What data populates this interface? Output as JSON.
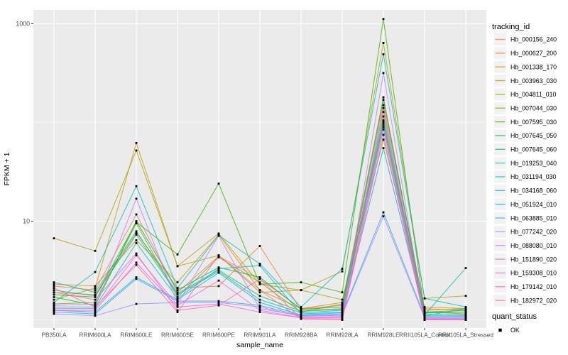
{
  "figure": {
    "xlabel": "sample_name",
    "ylabel": "FPKM + 1",
    "y_tick_labels": [
      "10",
      "1000"
    ],
    "legend_color_title": "tracking_id",
    "legend_shape_title": "quant_status",
    "legend_shape_item": "OK",
    "panel_bg": "#EBEBEB",
    "grid_color": "#FFFFFF",
    "tick_label_color": "#4D4D4D",
    "tick_mark_color": "#333333",
    "point_color": "#000000",
    "legend_key_bg": "#F2F2F2"
  },
  "chart_data": {
    "type": "line",
    "title": "",
    "xlabel": "sample_name",
    "ylabel": "FPKM + 1",
    "y_scale": "log10",
    "y_major_breaks": [
      10,
      1000
    ],
    "y_minor_breaks": [
      1,
      100
    ],
    "ylim": [
      0.85,
      1400
    ],
    "grid": true,
    "legend_position": "right",
    "categories": [
      "PB350LA",
      "RRIM600LA",
      "RRIM600LE",
      "RRIM600SE",
      "RRIM600PE",
      "RRIM901LA",
      "RRIM928BA",
      "RRIM928LA",
      "RRIM928LE",
      "RRII105LA_Control",
      "RRII105LA_Stressed"
    ],
    "series": [
      {
        "name": "Hb_000156_240",
        "color": "#F8766D",
        "values": [
          2.2,
          2.0,
          11.7,
          1.9,
          4.4,
          2.6,
          1.3,
          1.4,
          150,
          1.3,
          1.25
        ]
      },
      {
        "name": "Hb_000627_200",
        "color": "#EA8331",
        "values": [
          1.9,
          1.8,
          7.6,
          2.1,
          2.2,
          5.6,
          1.25,
          1.3,
          128,
          1.2,
          1.2
        ]
      },
      {
        "name": "Hb_001338_170",
        "color": "#D89000",
        "values": [
          2.3,
          2.2,
          6.4,
          2.4,
          7.3,
          2.0,
          1.3,
          1.5,
          100,
          1.25,
          1.3
        ]
      },
      {
        "name": "Hb_003963_030",
        "color": "#C09B00",
        "values": [
          1.6,
          2.1,
          62,
          3.5,
          7.5,
          2.3,
          2.0,
          3.1,
          640,
          1.65,
          1.75
        ]
      },
      {
        "name": "Hb_004811_010",
        "color": "#A3A500",
        "values": [
          6.7,
          5.0,
          52,
          3.5,
          4.5,
          1.9,
          2.0,
          1.6,
          67,
          1.35,
          1.3
        ]
      },
      {
        "name": "Hb_007044_030",
        "color": "#7CAE00",
        "values": [
          1.45,
          1.5,
          9.5,
          1.7,
          4.3,
          2.4,
          1.2,
          1.45,
          180,
          1.2,
          1.15
        ]
      },
      {
        "name": "Hb_007595_030",
        "color": "#39B600",
        "values": [
          1.8,
          1.7,
          9.8,
          4.6,
          24,
          2.3,
          2.4,
          1.9,
          1117,
          1.2,
          1.25
        ]
      },
      {
        "name": "Hb_007645_050",
        "color": "#00BB4E",
        "values": [
          1.7,
          1.4,
          10,
          2.0,
          3.4,
          2.7,
          1.28,
          1.35,
          170,
          1.18,
          1.2
        ]
      },
      {
        "name": "Hb_007645_060",
        "color": "#00C08B",
        "values": [
          2.4,
          1.9,
          7.9,
          1.85,
          3.2,
          1.75,
          1.22,
          1.28,
          115,
          1.15,
          1.12
        ]
      },
      {
        "name": "Hb_019253_040",
        "color": "#00C1A3",
        "values": [
          2.0,
          1.75,
          7.3,
          1.8,
          3.1,
          1.6,
          1.18,
          1.25,
          95,
          1.12,
          3.35
        ]
      },
      {
        "name": "Hb_031194_030",
        "color": "#00BFC4",
        "values": [
          1.5,
          3.05,
          22.6,
          2.1,
          7.2,
          3.7,
          1.35,
          3.3,
          490,
          1.65,
          1.35
        ]
      },
      {
        "name": "Hb_034168_060",
        "color": "#00BAE0",
        "values": [
          1.35,
          1.35,
          6.0,
          1.65,
          3.3,
          3.55,
          1.15,
          1.2,
          105,
          1.1,
          1.3
        ]
      },
      {
        "name": "Hb_051924_010",
        "color": "#00B0F6",
        "values": [
          1.25,
          1.2,
          2.7,
          1.6,
          3.0,
          1.5,
          1.12,
          1.18,
          55,
          1.1,
          1.1
        ]
      },
      {
        "name": "Hb_063885_010",
        "color": "#35A2FF",
        "values": [
          1.2,
          1.15,
          2.6,
          1.55,
          1.55,
          1.4,
          1.1,
          1.15,
          12.3,
          1.08,
          1.08
        ]
      },
      {
        "name": "Hb_077242_020",
        "color": "#9590FF",
        "values": [
          1.15,
          1.1,
          1.45,
          1.5,
          1.5,
          1.35,
          1.08,
          1.12,
          11.2,
          1.05,
          1.05
        ]
      },
      {
        "name": "Hb_088080_010",
        "color": "#C77CFF",
        "values": [
          1.4,
          1.45,
          16.9,
          1.45,
          7.1,
          1.3,
          1.1,
          1.1,
          317,
          1.05,
          1.03
        ]
      },
      {
        "name": "Hb_151890_020",
        "color": "#E76BF3",
        "values": [
          1.3,
          1.3,
          4.5,
          1.4,
          2.5,
          1.25,
          1.05,
          1.08,
          90,
          1.03,
          1.02
        ]
      },
      {
        "name": "Hb_159308_010",
        "color": "#FA62DB",
        "values": [
          1.25,
          1.25,
          3.8,
          1.35,
          1.45,
          1.2,
          1.05,
          1.05,
          85,
          1.02,
          1.0
        ]
      },
      {
        "name": "Hb_179142_010",
        "color": "#FF62BC",
        "values": [
          1.9,
          1.6,
          4.7,
          1.25,
          1.4,
          2.6,
          1.03,
          1.02,
          140,
          1.0,
          1.0
        ]
      },
      {
        "name": "Hb_182972_020",
        "color": "#FF6A98",
        "values": [
          2.1,
          1.35,
          3.6,
          1.2,
          4.5,
          2.0,
          1.02,
          1.0,
          75,
          1.0,
          1.0
        ]
      }
    ],
    "quant_status": [
      {
        "label": "OK",
        "marker": "black-square"
      }
    ]
  }
}
